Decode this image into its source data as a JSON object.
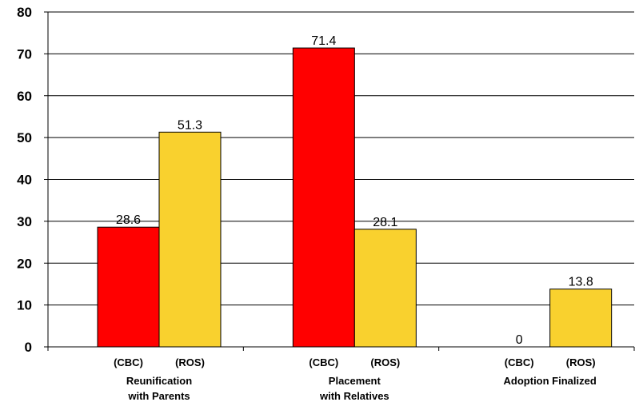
{
  "chart_data": {
    "type": "bar",
    "categories": [
      {
        "lines": [
          "Reunification",
          "with Parents"
        ]
      },
      {
        "lines": [
          "Placement",
          " with Relatives"
        ]
      },
      {
        "lines": [
          "Adoption Finalized"
        ]
      }
    ],
    "series": [
      {
        "name": "(CBC)",
        "color": "#ff0000",
        "values": [
          28.6,
          71.4,
          0
        ]
      },
      {
        "name": "(ROS)",
        "color": "#f9d12e",
        "values": [
          51.3,
          28.1,
          13.8
        ]
      }
    ],
    "data_labels": [
      [
        "28.6",
        "71.4",
        "0"
      ],
      [
        "51.3",
        "28.1",
        "13.8"
      ]
    ],
    "ylim": [
      0,
      80
    ],
    "yticks": [
      "0",
      "10",
      "20",
      "30",
      "40",
      "50",
      "60",
      "70",
      "80"
    ],
    "grid": true,
    "legend": "none",
    "title": "",
    "xlabel": "",
    "ylabel": ""
  }
}
